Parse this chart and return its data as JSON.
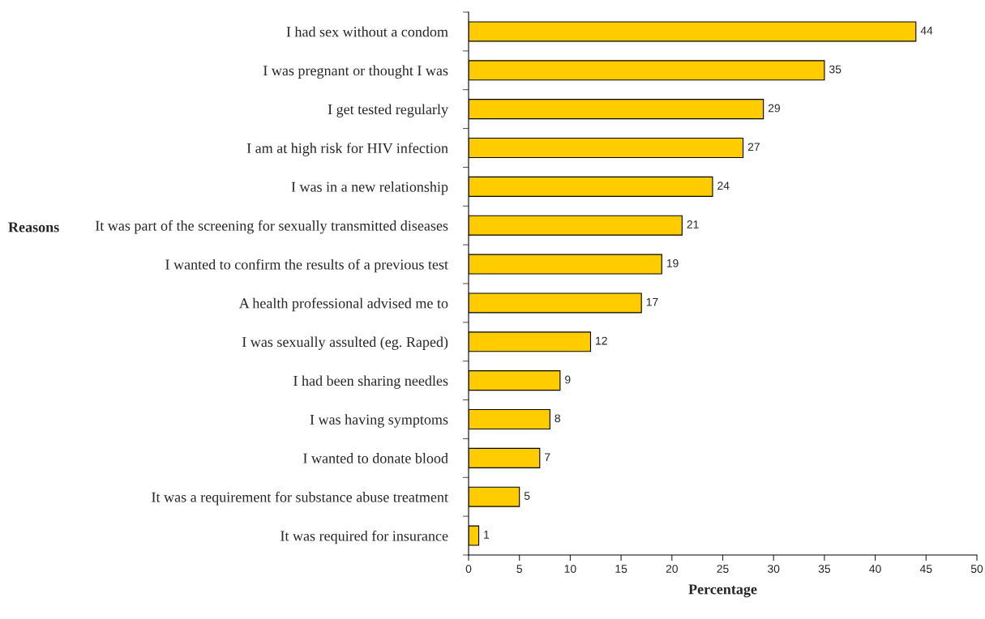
{
  "chart_data": {
    "type": "bar",
    "orientation": "horizontal",
    "ylabel": "Reasons",
    "xlabel": "Percentage",
    "categories": [
      "I had sex without a condom",
      "I was pregnant or thought I was",
      "I get tested regularly",
      "I am at high risk for HIV infection",
      "I was in a new relationship",
      "It was part of the screening for sexually transmitted diseases",
      "I wanted to confirm the results of a previous test",
      "A health professional advised me to",
      "I was sexually assulted (eg. Raped)",
      "I had been sharing needles",
      "I was having symptoms",
      "I wanted to donate blood",
      "It was a requirement for substance abuse treatment",
      "It was required for insurance"
    ],
    "values": [
      44,
      35,
      29,
      27,
      24,
      21,
      19,
      17,
      12,
      9,
      8,
      7,
      5,
      1
    ],
    "color": "#ffcc00",
    "xlim": [
      0,
      50
    ],
    "xticks": [
      0,
      5,
      10,
      15,
      20,
      25,
      30,
      35,
      40,
      45,
      50
    ],
    "data_labels": true,
    "grid": false,
    "legend": false
  }
}
